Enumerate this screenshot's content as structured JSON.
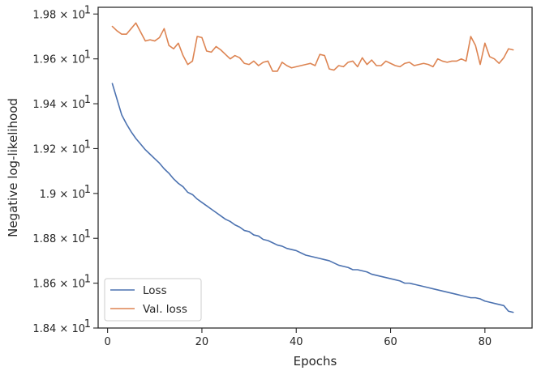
{
  "chart_data": {
    "type": "line",
    "xlabel": "Epochs",
    "ylabel": "Negative log-likelihood",
    "xlim": [
      -2,
      90
    ],
    "ylim": [
      18.4,
      19.83
    ],
    "x_ticks": [
      0,
      20,
      40,
      60,
      80
    ],
    "y_ticks": [
      18.4,
      18.6,
      18.8,
      19.0,
      19.2,
      19.4,
      19.6,
      19.8
    ],
    "y_tick_labels": [
      {
        "mant": "1.84",
        "exp": "1"
      },
      {
        "mant": "1.86",
        "exp": "1"
      },
      {
        "mant": "1.88",
        "exp": "1"
      },
      {
        "mant": "1.9",
        "exp": "1"
      },
      {
        "mant": "1.92",
        "exp": "1"
      },
      {
        "mant": "1.94",
        "exp": "1"
      },
      {
        "mant": "1.96",
        "exp": "1"
      },
      {
        "mant": "1.98",
        "exp": "1"
      }
    ],
    "times_sign": "× 10",
    "legend_position": "lower left",
    "grid": false,
    "series": [
      {
        "name": "Loss",
        "color": "#4c72b0",
        "x_start": 1,
        "values": [
          19.49,
          19.42,
          19.35,
          19.31,
          19.275,
          19.245,
          19.22,
          19.195,
          19.175,
          19.155,
          19.135,
          19.11,
          19.09,
          19.065,
          19.045,
          19.03,
          19.005,
          18.995,
          18.975,
          18.96,
          18.945,
          18.93,
          18.915,
          18.9,
          18.885,
          18.875,
          18.86,
          18.85,
          18.835,
          18.83,
          18.815,
          18.81,
          18.795,
          18.79,
          18.78,
          18.77,
          18.765,
          18.755,
          18.75,
          18.745,
          18.735,
          18.725,
          18.72,
          18.715,
          18.71,
          18.705,
          18.7,
          18.69,
          18.68,
          18.675,
          18.67,
          18.66,
          18.66,
          18.655,
          18.65,
          18.64,
          18.635,
          18.63,
          18.625,
          18.62,
          18.615,
          18.61,
          18.6,
          18.6,
          18.595,
          18.59,
          18.585,
          18.58,
          18.575,
          18.57,
          18.565,
          18.56,
          18.555,
          18.55,
          18.545,
          18.54,
          18.535,
          18.535,
          18.53,
          18.52,
          18.515,
          18.51,
          18.505,
          18.5,
          18.475,
          18.47
        ]
      },
      {
        "name": "Val. loss",
        "color": "#dd8452",
        "x_start": 1,
        "values": [
          19.745,
          19.725,
          19.71,
          19.71,
          19.735,
          19.76,
          19.72,
          19.68,
          19.685,
          19.68,
          19.695,
          19.735,
          19.66,
          19.645,
          19.67,
          19.615,
          19.575,
          19.59,
          19.7,
          19.695,
          19.635,
          19.63,
          19.655,
          19.64,
          19.62,
          19.6,
          19.615,
          19.605,
          19.58,
          19.575,
          19.59,
          19.57,
          19.585,
          19.59,
          19.545,
          19.545,
          19.585,
          19.57,
          19.56,
          19.565,
          19.57,
          19.575,
          19.58,
          19.57,
          19.62,
          19.615,
          19.555,
          19.55,
          19.57,
          19.565,
          19.585,
          19.59,
          19.565,
          19.605,
          19.575,
          19.595,
          19.57,
          19.57,
          19.59,
          19.58,
          19.57,
          19.565,
          19.58,
          19.585,
          19.57,
          19.575,
          19.58,
          19.575,
          19.565,
          19.6,
          19.59,
          19.585,
          19.59,
          19.59,
          19.6,
          19.59,
          19.7,
          19.66,
          19.575,
          19.67,
          19.61,
          19.6,
          19.58,
          19.605,
          19.645,
          19.64
        ]
      }
    ]
  }
}
